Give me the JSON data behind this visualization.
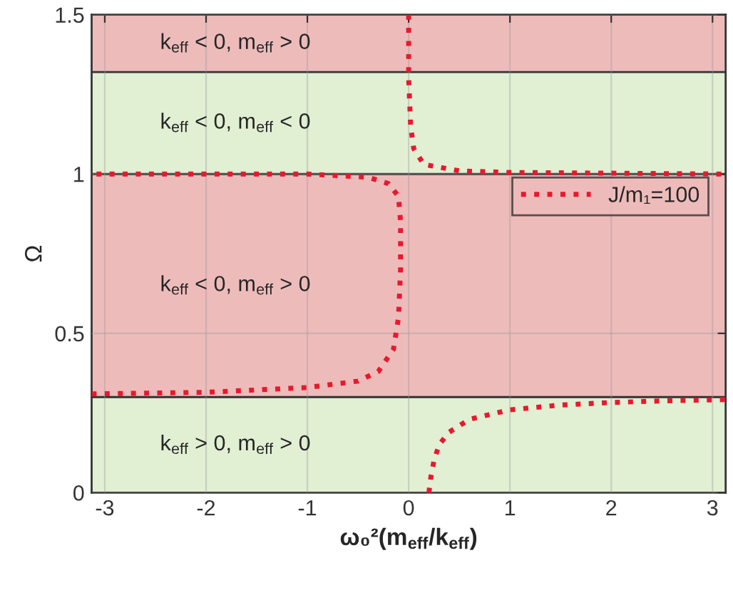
{
  "chart_data": {
    "type": "line",
    "xlabel": "ω₀²(m$_{eff}$/k$_{eff}$)",
    "ylabel": "Ω",
    "xlim": [
      -3.13,
      3.13
    ],
    "ylim": [
      0,
      1.5
    ],
    "xticks": [
      -3,
      -2,
      -1,
      0,
      1,
      2,
      3
    ],
    "yticks": [
      0,
      0.5,
      1,
      1.5
    ],
    "grid": true,
    "legend": "right",
    "line_style": "dotted",
    "marker": "none",
    "bands": [
      {
        "axis": "y",
        "from": 0,
        "to": 0.3,
        "color": "#e1efd3",
        "label": "k$_{eff}$ > 0, m$_{eff}$ > 0"
      },
      {
        "axis": "y",
        "from": 0.3,
        "to": 1,
        "color": "#eebbbb",
        "label": "k$_{eff}$ < 0, m$_{eff}$ > 0"
      },
      {
        "axis": "y",
        "from": 1,
        "to": 1.32,
        "color": "#e1efd3",
        "label": "k$_{eff}$ < 0, m$_{eff}$ < 0"
      },
      {
        "axis": "y",
        "from": 1.32,
        "to": 1.5,
        "color": "#eebbbb",
        "label": "k$_{eff}$ < 0, m$_{eff}$ > 0"
      }
    ],
    "ref_lines": [
      {
        "axis": "y",
        "value": 0.3,
        "color": "#333333"
      },
      {
        "axis": "y",
        "value": 1,
        "color": "#333333"
      },
      {
        "axis": "y",
        "value": 1.32,
        "color": "#333333"
      }
    ],
    "series": [
      {
        "name": "J/m₁=100",
        "color": "#e8192c",
        "x": [
          0.2,
          0.22,
          0.25,
          0.3,
          0.4,
          0.6,
          1,
          1.5,
          2,
          2.5,
          3.13
        ],
        "values": [
          0,
          0.05,
          0.1,
          0.15,
          0.19,
          0.23,
          0.26,
          0.275,
          0.283,
          0.288,
          0.292
        ]
      },
      {
        "color": "#e8192c",
        "x": [
          -3.13,
          -2,
          -1,
          -0.5,
          -0.3,
          -0.15,
          -0.1,
          -0.08,
          -0.08,
          -0.1,
          -0.2,
          -0.4,
          -1,
          -3.13
        ],
        "values": [
          0.31,
          0.315,
          0.33,
          0.35,
          0.38,
          0.45,
          0.55,
          0.7,
          0.85,
          0.93,
          0.97,
          0.99,
          1.0,
          1.0
        ]
      },
      {
        "color": "#e8192c",
        "x": [
          0,
          0,
          0.02,
          0.05,
          0.15,
          0.5,
          1,
          3.13
        ],
        "values": [
          1.5,
          1.3,
          1.15,
          1.08,
          1.03,
          1.01,
          1.005,
          1.0
        ]
      }
    ]
  }
}
